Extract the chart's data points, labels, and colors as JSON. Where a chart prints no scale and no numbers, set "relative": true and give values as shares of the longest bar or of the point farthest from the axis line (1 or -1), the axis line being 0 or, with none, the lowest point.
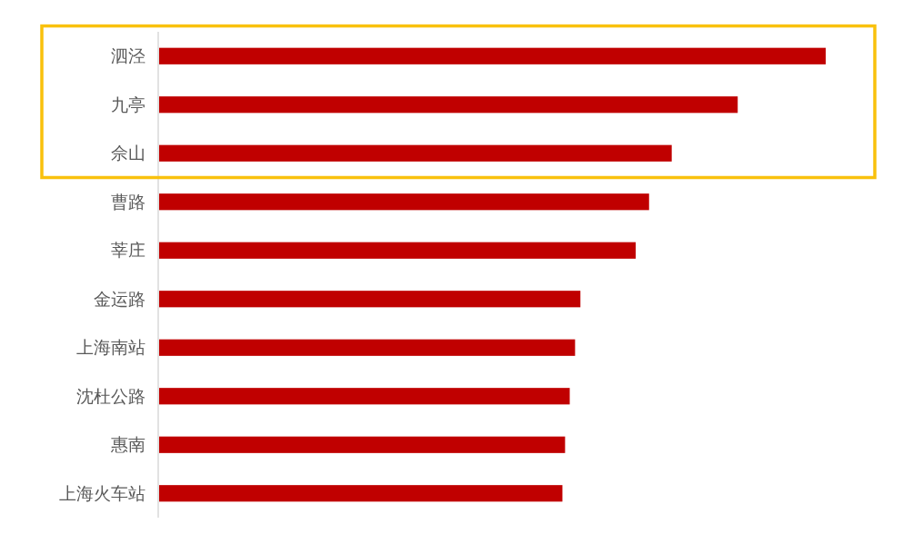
{
  "chart_data": {
    "type": "bar",
    "orientation": "horizontal",
    "relative": true,
    "categories": [
      "泗泾",
      "九亭",
      "佘山",
      "曹路",
      "莘庄",
      "金运路",
      "上海南站",
      "沈杜公路",
      "惠南",
      "上海火车站"
    ],
    "values": [
      1,
      0.868,
      0.769,
      0.735,
      0.715,
      0.632,
      0.624,
      0.616,
      0.609,
      0.605
    ],
    "color": "#c00000"
  }
}
